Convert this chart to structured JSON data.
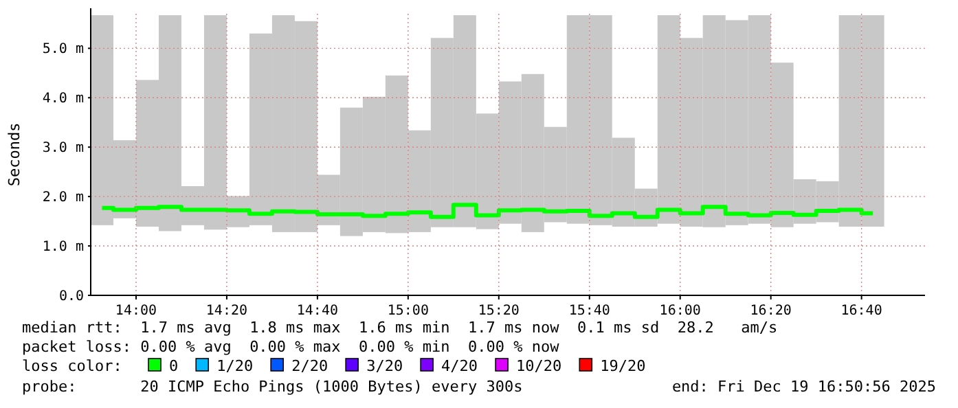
{
  "chart_data": {
    "type": "bar",
    "ylabel": "Seconds",
    "legend_title": "loss color:",
    "legend": "bottom",
    "grid": true,
    "x": [
      "2025-12-19T13:52:30",
      "2025-12-19T13:57:30",
      "2025-12-19T14:02:30",
      "2025-12-19T14:07:30",
      "2025-12-19T14:12:30",
      "2025-12-19T14:17:30",
      "2025-12-19T14:22:30",
      "2025-12-19T14:27:30",
      "2025-12-19T14:32:30",
      "2025-12-19T14:37:30",
      "2025-12-19T14:42:30",
      "2025-12-19T14:47:30",
      "2025-12-19T14:52:30",
      "2025-12-19T14:57:30",
      "2025-12-19T15:02:30",
      "2025-12-19T15:07:30",
      "2025-12-19T15:12:30",
      "2025-12-19T15:17:30",
      "2025-12-19T15:22:30",
      "2025-12-19T15:27:30",
      "2025-12-19T15:32:30",
      "2025-12-19T15:37:30",
      "2025-12-19T15:42:30",
      "2025-12-19T15:47:30",
      "2025-12-19T15:52:30",
      "2025-12-19T15:57:30",
      "2025-12-19T16:02:30",
      "2025-12-19T16:07:30",
      "2025-12-19T16:12:30",
      "2025-12-19T16:17:30",
      "2025-12-19T16:22:30",
      "2025-12-19T16:27:30",
      "2025-12-19T16:32:30",
      "2025-12-19T16:37:30",
      "2025-12-19T16:42:30"
    ],
    "xlim": [
      "2025-12-19T13:50",
      "2025-12-19T16:54"
    ],
    "xticks": [
      {
        "value": "2025-12-19T14:00",
        "label": "14:00"
      },
      {
        "value": "2025-12-19T14:20",
        "label": "14:20"
      },
      {
        "value": "2025-12-19T14:40",
        "label": "14:40"
      },
      {
        "value": "2025-12-19T15:00",
        "label": "15:00"
      },
      {
        "value": "2025-12-19T15:20",
        "label": "15:20"
      },
      {
        "value": "2025-12-19T15:40",
        "label": "15:40"
      },
      {
        "value": "2025-12-19T16:00",
        "label": "16:00"
      },
      {
        "value": "2025-12-19T16:20",
        "label": "16:20"
      },
      {
        "value": "2025-12-19T16:40",
        "label": "16:40"
      }
    ],
    "ylim": [
      0,
      5.7
    ],
    "yticks": [
      {
        "value": 0,
        "label": "0.0"
      },
      {
        "value": 1,
        "label": "1.0 m"
      },
      {
        "value": 2,
        "label": "2.0 m"
      },
      {
        "value": 3,
        "label": "3.0 m"
      },
      {
        "value": 4,
        "label": "4.0 m"
      },
      {
        "value": 5,
        "label": "5.0 m"
      }
    ],
    "series": [
      {
        "color": "#c8c8c8",
        "base": [
          1.42,
          1.56,
          1.39,
          1.3,
          1.42,
          1.33,
          1.38,
          1.42,
          1.28,
          1.28,
          1.42,
          1.2,
          1.28,
          1.26,
          1.28,
          1.38,
          1.38,
          1.34,
          1.45,
          1.28,
          1.48,
          1.45,
          1.42,
          1.39,
          1.39,
          1.45,
          1.39,
          1.38,
          1.42,
          1.45,
          1.38,
          1.45,
          1.48,
          1.39,
          1.39
        ],
        "values": [
          4.25,
          1.58,
          2.97,
          4.37,
          0.79,
          4.34,
          0.63,
          3.88,
          4.39,
          4.27,
          1.02,
          2.6,
          2.74,
          3.19,
          2.06,
          3.83,
          4.29,
          2.34,
          2.88,
          3.2,
          1.93,
          4.22,
          4.25,
          1.8,
          0.77,
          4.22,
          3.82,
          4.29,
          4.15,
          4.22,
          3.33,
          0.9,
          0.83,
          4.28,
          4.28
        ]
      },
      {
        "type": "step",
        "name": "0",
        "color": "#00ff00",
        "values": [
          1.77,
          1.73,
          1.77,
          1.79,
          1.73,
          1.73,
          1.72,
          1.65,
          1.7,
          1.69,
          1.64,
          1.64,
          1.61,
          1.65,
          1.68,
          1.59,
          1.83,
          1.62,
          1.72,
          1.73,
          1.7,
          1.71,
          1.61,
          1.66,
          1.59,
          1.73,
          1.66,
          1.79,
          1.65,
          1.62,
          1.67,
          1.63,
          1.71,
          1.73,
          1.66
        ]
      },
      {
        "type": "step",
        "name": "1/20",
        "color": "#00b8ff",
        "values": [
          null,
          null,
          null,
          null,
          null,
          null,
          null,
          null,
          null,
          null,
          null,
          null,
          null,
          null,
          null,
          null,
          null,
          null,
          null,
          null,
          null,
          null,
          null,
          null,
          null,
          null,
          null,
          null,
          null,
          null,
          null,
          null,
          null,
          null,
          null
        ]
      },
      {
        "type": "step",
        "name": "2/20",
        "color": "#0059ff",
        "values": [
          null,
          null,
          null,
          null,
          null,
          null,
          null,
          null,
          null,
          null,
          null,
          null,
          null,
          null,
          null,
          null,
          null,
          null,
          null,
          null,
          null,
          null,
          null,
          null,
          null,
          null,
          null,
          null,
          null,
          null,
          null,
          null,
          null,
          null,
          null
        ]
      },
      {
        "type": "step",
        "name": "3/20",
        "color": "#5e00ff",
        "values": [
          null,
          null,
          null,
          null,
          null,
          null,
          null,
          null,
          null,
          null,
          null,
          null,
          null,
          null,
          null,
          null,
          null,
          null,
          null,
          null,
          null,
          null,
          null,
          null,
          null,
          null,
          null,
          null,
          null,
          null,
          null,
          null,
          null,
          null,
          null
        ]
      },
      {
        "type": "step",
        "name": "4/20",
        "color": "#7e00ff",
        "values": [
          null,
          null,
          null,
          null,
          null,
          null,
          null,
          null,
          null,
          null,
          null,
          null,
          null,
          null,
          null,
          null,
          null,
          null,
          null,
          null,
          null,
          null,
          null,
          null,
          null,
          null,
          null,
          null,
          null,
          null,
          null,
          null,
          null,
          null,
          null
        ]
      },
      {
        "type": "step",
        "name": "10/20",
        "color": "#dd00ff",
        "values": [
          null,
          null,
          null,
          null,
          null,
          null,
          null,
          null,
          null,
          null,
          null,
          null,
          null,
          null,
          null,
          null,
          null,
          null,
          null,
          null,
          null,
          null,
          null,
          null,
          null,
          null,
          null,
          null,
          null,
          null,
          null,
          null,
          null,
          null,
          null
        ]
      },
      {
        "type": "step",
        "name": "19/20",
        "color": "#ff0000",
        "values": [
          null,
          null,
          null,
          null,
          null,
          null,
          null,
          null,
          null,
          null,
          null,
          null,
          null,
          null,
          null,
          null,
          null,
          null,
          null,
          null,
          null,
          null,
          null,
          null,
          null,
          null,
          null,
          null,
          null,
          null,
          null,
          null,
          null,
          null,
          null
        ]
      }
    ],
    "annotations": [
      "median rtt:  1.7 ms avg  1.8 ms max  1.6 ms min  1.7 ms now  0.1 ms sd  28.2   am/s",
      "packet loss: 0.00 % avg  0.00 % max  0.00 % min  0.00 % now",
      "probe:       20 ICMP Echo Pings (1000 Bytes) every 300s",
      "end: Fri Dec 19 16:50:56 2025"
    ]
  }
}
